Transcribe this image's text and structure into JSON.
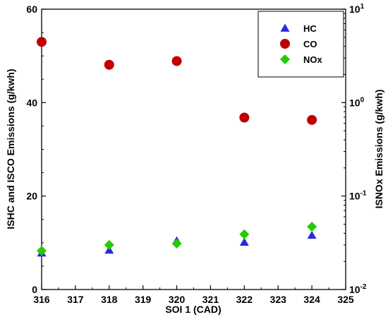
{
  "chart_data": {
    "type": "scatter",
    "xlabel": "SOI 1 (CAD)",
    "ylabel_left": "ISHC and ISCO Emissions (g/kwh)",
    "ylabel_right": "ISNOx Emissions (g/kwh)",
    "xlim": [
      316,
      325
    ],
    "ylim_left": [
      0,
      60
    ],
    "ylim_right": [
      0.01,
      10
    ],
    "right_axis_scale": "log",
    "x_ticks": [
      316,
      317,
      318,
      319,
      320,
      321,
      322,
      323,
      324,
      325
    ],
    "y_left_ticks": [
      0,
      20,
      40,
      60
    ],
    "y_right_ticks": [
      {
        "value": 0.01,
        "base": "10",
        "exp": "-2"
      },
      {
        "value": 0.1,
        "base": "10",
        "exp": "-1"
      },
      {
        "value": 1,
        "base": "10",
        "exp": "0"
      },
      {
        "value": 10,
        "base": "10",
        "exp": "1"
      }
    ],
    "legend_position": "top-right",
    "grid": false,
    "series": [
      {
        "name": "HC",
        "axis": "left",
        "marker": "triangle",
        "color": "#2b2bdc",
        "x": [
          316,
          318,
          320,
          322,
          324
        ],
        "y": [
          7.8,
          8.4,
          10.4,
          10.1,
          11.6
        ]
      },
      {
        "name": "CO",
        "axis": "left",
        "marker": "circle",
        "color": "#c00000",
        "x": [
          316,
          318,
          320,
          322,
          324
        ],
        "y": [
          53.0,
          48.1,
          48.9,
          36.8,
          36.3
        ]
      },
      {
        "name": "NOx",
        "axis": "right",
        "marker": "diamond",
        "color": "#22cc00",
        "x": [
          316,
          318,
          320,
          322,
          324
        ],
        "y": [
          0.026,
          0.03,
          0.031,
          0.039,
          0.047
        ]
      }
    ]
  }
}
